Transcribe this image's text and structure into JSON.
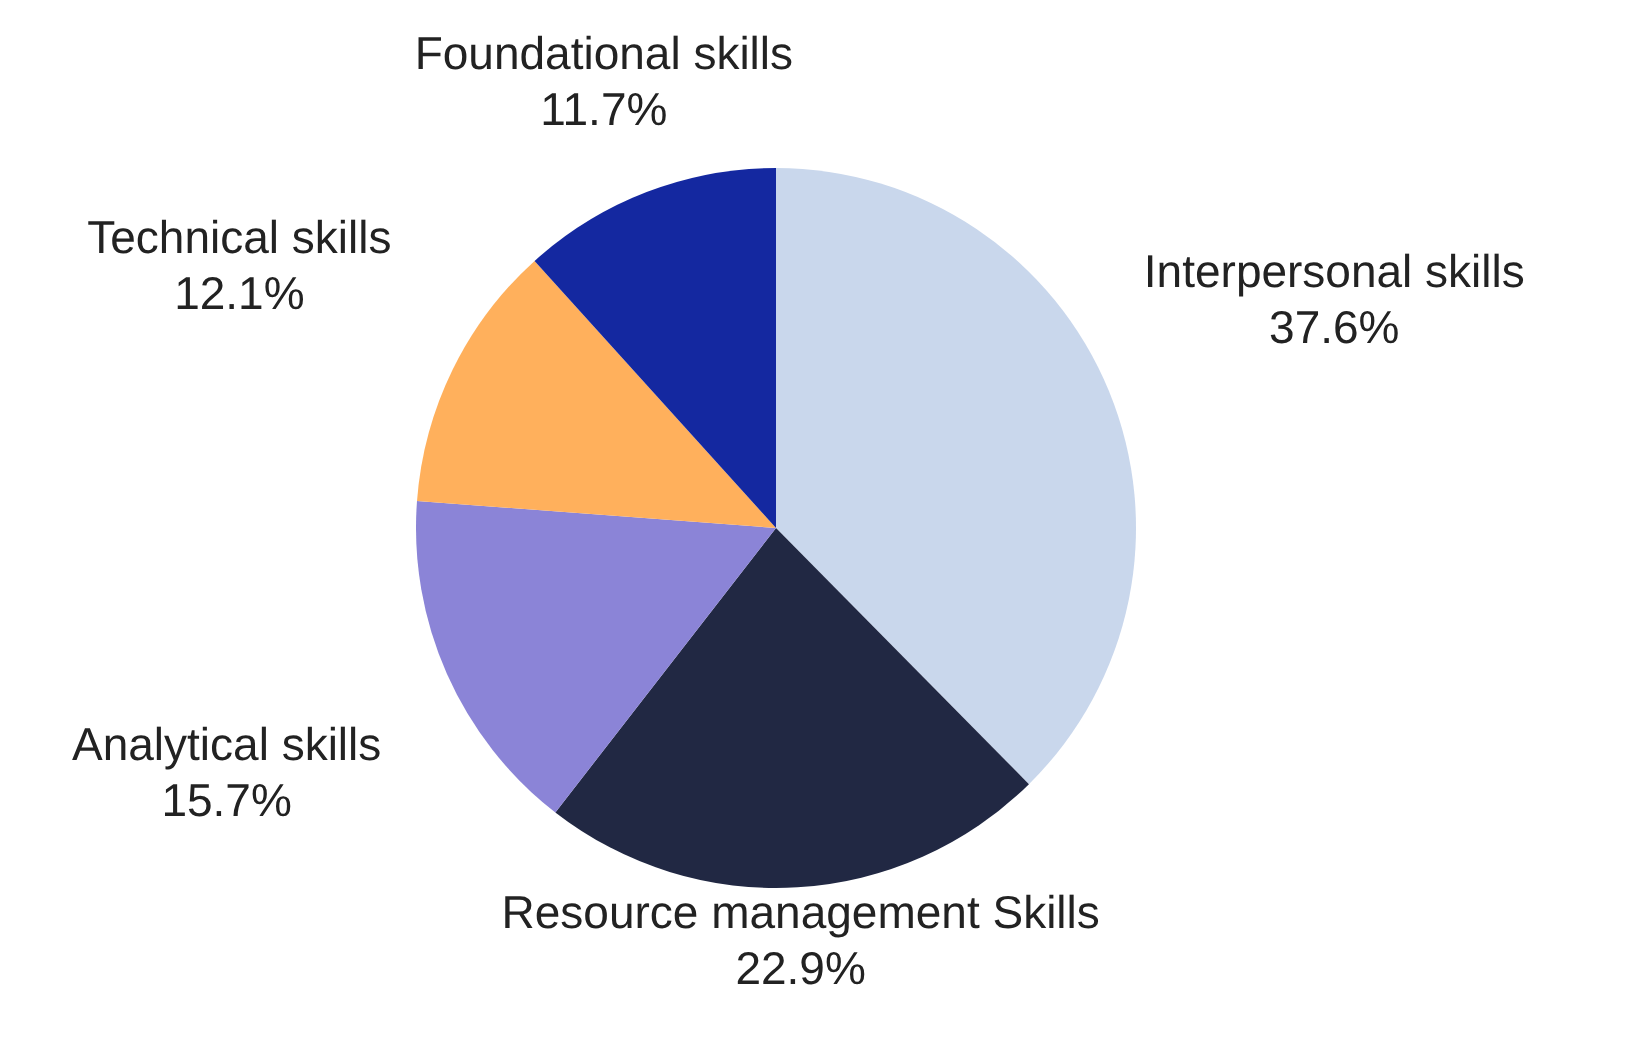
{
  "chart_data": {
    "type": "pie",
    "categories": [
      "Interpersonal skills",
      "Resource management Skills",
      "Analytical skills",
      "Technical skills",
      "Foundational skills"
    ],
    "values": [
      37.6,
      22.9,
      15.7,
      12.1,
      11.7
    ],
    "value_labels": [
      "37.6%",
      "22.9%",
      "15.7%",
      "12.1%",
      "11.7%"
    ],
    "colors": [
      "#c9d7ec",
      "#212843",
      "#8b84d7",
      "#ffb05c",
      "#1428a0"
    ]
  }
}
